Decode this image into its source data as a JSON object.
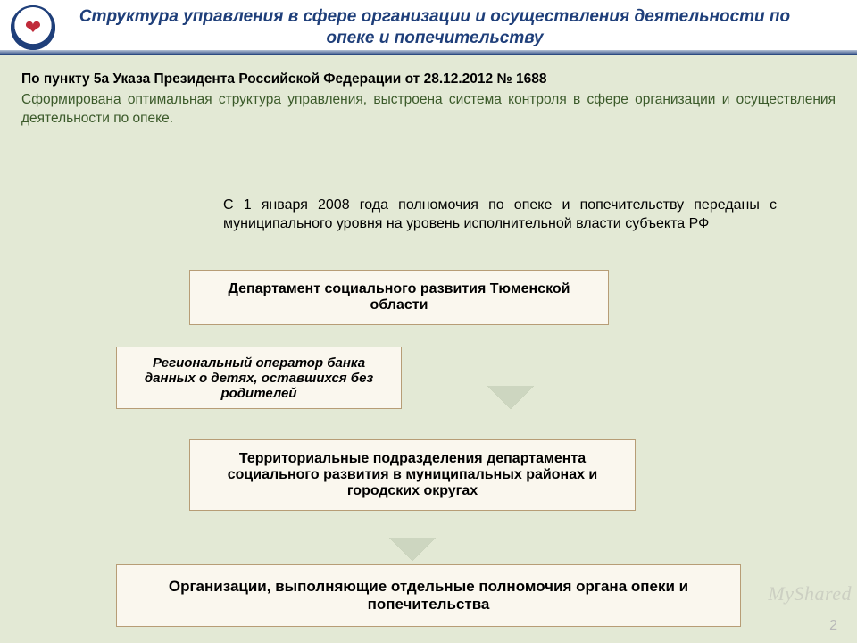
{
  "colors": {
    "title": "#1f3f7a",
    "main_bg": "#e3e9d5",
    "intro_para": "#3b5a2a",
    "box_bg": "#faf7ee",
    "box_border": "#b79d76",
    "box_shadow": "#8a9a7a",
    "arrow_fill": "#7d8e6c",
    "logo_heart": "#c02b3a"
  },
  "header": {
    "title": "Структура управления в сфере организации и осуществления деятельности по опеке и попечительству"
  },
  "intro": {
    "bold": "По пункту 5а Указа Президента Российской Федерации от 28.12.2012 № 1688",
    "para": "Сформирована оптимальная структура управления, выстроена система контроля в сфере организации и осуществления деятельности по опеке."
  },
  "context": "С 1 января 2008 года полномочия по опеке и попечительству переданы с муниципального уровня на уровень исполнительной власти субъекта РФ",
  "boxes": {
    "b1": "Департамент социального развития Тюменской области",
    "b2": "Региональный оператор банка данных о детях, оставшихся без родителей",
    "b3": "Территориальные подразделения департамента социального развития в муниципальных районах и городских округах",
    "b4": "Организации, выполняющие отдельные полномочия органа опеки и попечительства"
  },
  "page_number": "2",
  "watermark": "MyShared"
}
